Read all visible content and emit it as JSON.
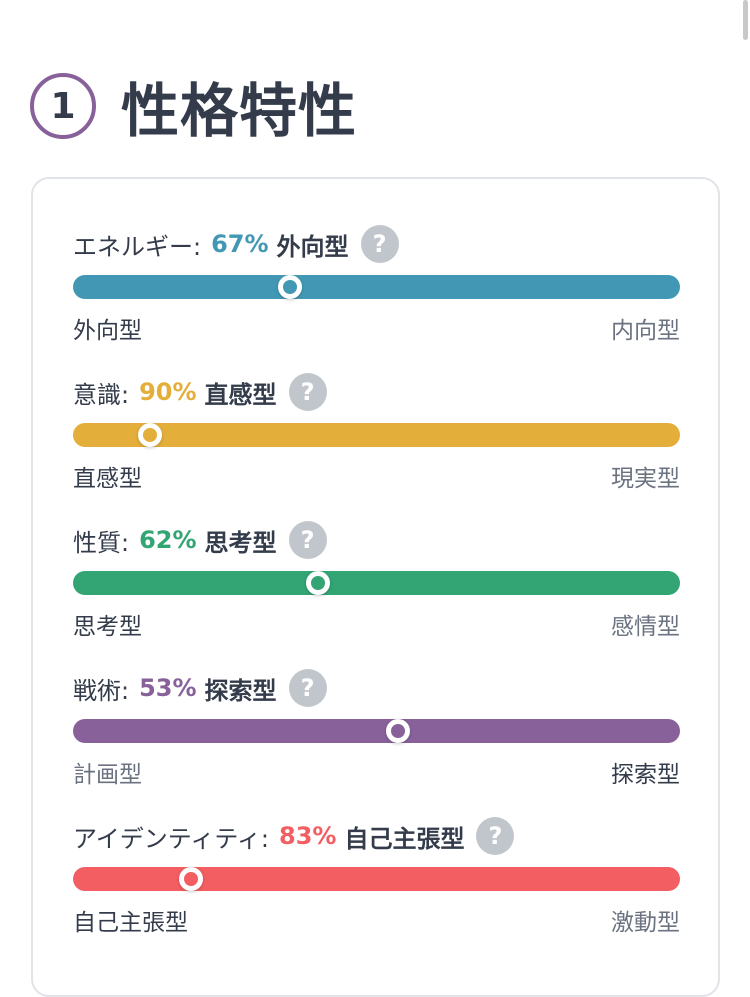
{
  "header": {
    "step_number": "1",
    "title": "性格特性"
  },
  "traits": [
    {
      "key": "energy",
      "label": "エネルギー:",
      "percent_text": "67%",
      "type": "外向型",
      "left_label": "外向型",
      "right_label": "内向型",
      "active_side": "left",
      "marker_level": 0.357,
      "color": "#4298b4"
    },
    {
      "key": "mind",
      "label": "意識:",
      "percent_text": "90%",
      "type": "直感型",
      "left_label": "直感型",
      "right_label": "現実型",
      "active_side": "left",
      "marker_level": 0.127,
      "color": "#e4ae3a"
    },
    {
      "key": "nature",
      "label": "性質:",
      "percent_text": "62%",
      "type": "思考型",
      "left_label": "思考型",
      "right_label": "感情型",
      "active_side": "left",
      "marker_level": 0.404,
      "color": "#33a474"
    },
    {
      "key": "tactics",
      "label": "戦術:",
      "percent_text": "53%",
      "type": "探索型",
      "left_label": "計画型",
      "right_label": "探索型",
      "active_side": "right",
      "marker_level": 0.536,
      "color": "#88619a"
    },
    {
      "key": "identity",
      "label": "アイデンティティ:",
      "percent_text": "83%",
      "type": "自己主張型",
      "left_label": "自己主張型",
      "right_label": "激動型",
      "active_side": "left",
      "marker_level": 0.195,
      "color": "#f25e62"
    }
  ],
  "help_icon_glyph": "?"
}
